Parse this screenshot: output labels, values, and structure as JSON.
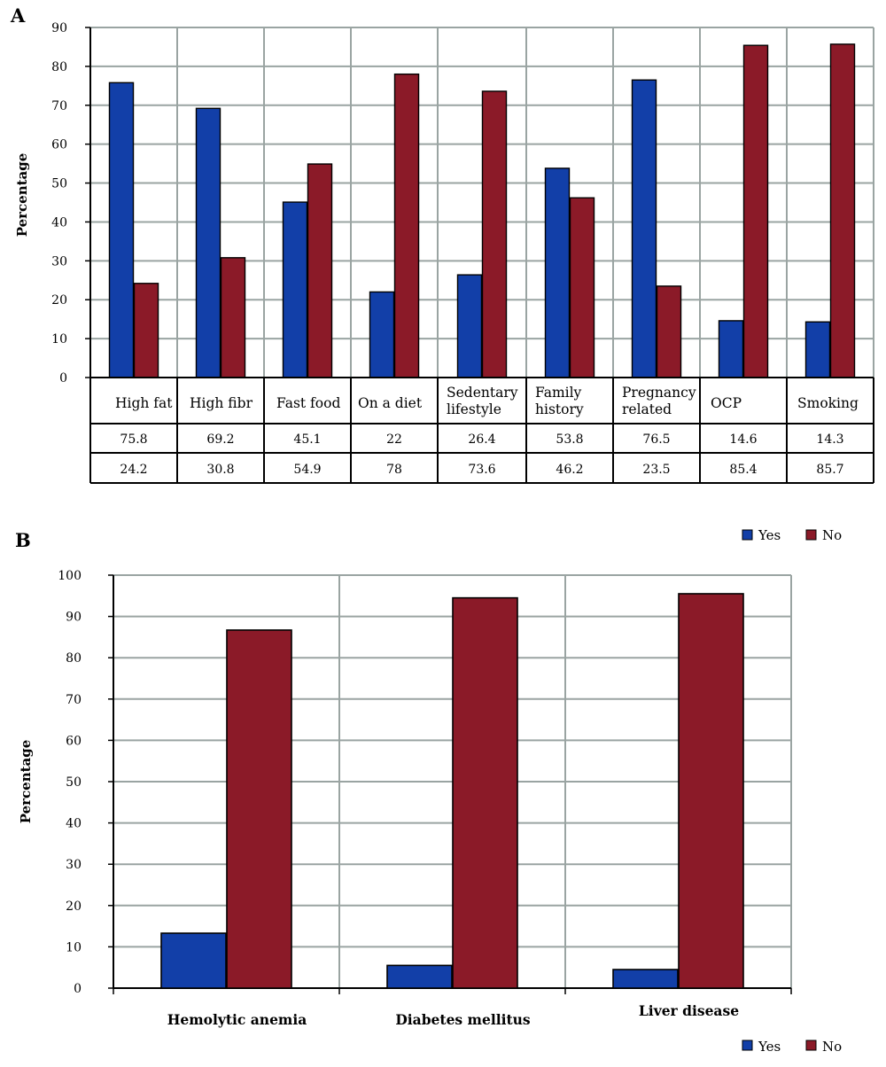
{
  "colors": {
    "yes": "#123fa8",
    "no": "#8b1a28",
    "grid": "#9aa4a2",
    "axis": "#000000"
  },
  "chart_data": [
    {
      "panel": "A",
      "type": "bar",
      "ylabel": "Percentage",
      "ylim": [
        0,
        90
      ],
      "ytick_step": 10,
      "grid": true,
      "categories": [
        "High fat",
        "High fibr",
        "Fast food",
        "On a diet",
        "Sedentary lifestyle",
        "Family history",
        "Pregnancy related",
        "OCP",
        "Smoking"
      ],
      "series": [
        {
          "name": "Yes",
          "color": "#123fa8",
          "values": [
            75.8,
            69.2,
            45.1,
            22,
            26.4,
            53.8,
            76.5,
            14.6,
            14.3
          ]
        },
        {
          "name": "No",
          "color": "#8b1a28",
          "values": [
            24.2,
            30.8,
            54.9,
            78,
            73.6,
            46.2,
            23.5,
            85.4,
            85.7
          ]
        }
      ],
      "table_rows": [
        [
          "75.8",
          "69.2",
          "45.1",
          "22",
          "26.4",
          "53.8",
          "76.5",
          "14.6",
          "14.3"
        ],
        [
          "24.2",
          "30.8",
          "54.9",
          "78",
          "73.6",
          "46.2",
          "23.5",
          "85.4",
          "85.7"
        ]
      ],
      "legend": [
        "Yes",
        "No"
      ],
      "legend_position": "bottom-right"
    },
    {
      "panel": "B",
      "type": "bar",
      "ylabel": "Percentage",
      "ylim": [
        0,
        100
      ],
      "ytick_step": 10,
      "grid": true,
      "categories": [
        "Hemolytic anemia",
        "Diabetes mellitus",
        "Liver disease"
      ],
      "series": [
        {
          "name": "Yes",
          "color": "#123fa8",
          "values": [
            13.3,
            5.5,
            4.5
          ]
        },
        {
          "name": "No",
          "color": "#8b1a28",
          "values": [
            86.7,
            94.5,
            95.5
          ]
        }
      ],
      "legend": [
        "Yes",
        "No"
      ],
      "legend_position": "bottom-right"
    }
  ]
}
